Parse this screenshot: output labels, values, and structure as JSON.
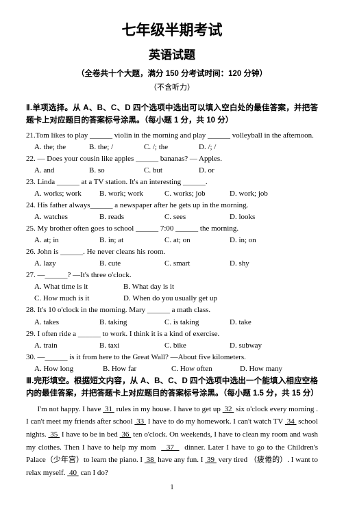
{
  "header": {
    "main_title": "七年级半期考试",
    "sub_title": "英语试题",
    "info": "（全卷共十个大题，满分 150 分考试时间：120 分钟）",
    "note": "（不含听力）"
  },
  "sectionII": {
    "heading": "Ⅱ.单项选择。从 A、B、C、D 四个选项中选出可以填入空白处的最佳答案，并把答题卡上对应题目的答案标号涂黑。（每小题 1 分，共 10 分）",
    "questions": [
      {
        "stem": "21.Tom likes to play ______ violin in the morning and play ______ volleyball in the afternoon.",
        "opts": [
          "A. the; the",
          "B. the; /",
          "C. /; the",
          "D. /; /"
        ],
        "widths": [
          80,
          80,
          80,
          80
        ]
      },
      {
        "stem": "22. — Does your cousin like apples ______ bananas?        — Apples.",
        "opts": [
          "A. and",
          "B. so",
          "C. but",
          "D. or"
        ],
        "widths": [
          80,
          80,
          80,
          80
        ]
      },
      {
        "stem": "23. Linda ______ at a TV station. It's an interesting ______.",
        "opts": [
          "A. works; work",
          "B. work; work",
          "C. works; job",
          "D. work; job"
        ],
        "widths": [
          95,
          95,
          95,
          95
        ]
      },
      {
        "stem": "24. His father always______ a newspaper after he gets up in the morning.",
        "opts": [
          "A. watches",
          "B. reads",
          "C. sees",
          "D. looks"
        ],
        "widths": [
          95,
          95,
          95,
          95
        ]
      },
      {
        "stem": "25. My brother often goes to school ______ 7:00 ______ the morning.",
        "opts": [
          "A. at; in",
          "B. in; at",
          "C. at; on",
          "D. in; on"
        ],
        "widths": [
          95,
          95,
          95,
          95
        ]
      },
      {
        "stem": "26. John is ______. He never cleans his room.",
        "opts": [
          "A. lazy",
          "B. cute",
          "C. smart",
          "D. shy"
        ],
        "widths": [
          95,
          95,
          95,
          95
        ]
      },
      {
        "stem": "27. —______?    —It's three o'clock.",
        "opts": [
          "A. What time is it",
          "B. What day is it",
          "C. How much is it",
          "D. When do you usually get up"
        ],
        "widths": [
          130,
          130,
          130,
          200
        ],
        "twoLine": true
      },
      {
        "stem": "28. It's 10 o'clock in the morning. Mary ______ a math class.",
        "opts": [
          "A. takes",
          "B. taking",
          "C. is taking",
          "D. take"
        ],
        "widths": [
          95,
          95,
          95,
          95
        ]
      },
      {
        "stem": "29. I often ride a ______ to work. I think it is a kind of exercise.",
        "opts": [
          "A. train",
          "B. taxi",
          "C. bike",
          "D. subway"
        ],
        "widths": [
          95,
          95,
          95,
          95
        ]
      },
      {
        "stem": "30. —______ is it from here to the Great Wall? —About five kilometers.",
        "opts": [
          "A. How long",
          "B. How far",
          "C. How often",
          "D. How many"
        ],
        "widths": [
          100,
          100,
          100,
          100
        ]
      }
    ]
  },
  "sectionIII": {
    "heading": "Ⅲ.完形填空。根据短文内容，从 A、B、C、D 四个选项中选出一个能填入相应空格内的最佳答案，并把答题卡上对应题目的答案标号涂黑。（每小题 1.5 分，共 15 分）",
    "passage_html": "I'm not happy.  I have <u>&nbsp;31&nbsp;</u> rules in my house. I have to get up <u>&nbsp;32&nbsp;</u> six o'clock every morning . I can't meet my friends after school <u>&nbsp;33&nbsp;</u> I have to do my homework. I can't watch TV <u>&nbsp;34&nbsp;</u> school nights. <u>&nbsp;35&nbsp;</u> I have to be in bed <u>&nbsp;36&nbsp;</u> ten o'clock. On weekends, I have to clean my room and wash my clothes. Then I have to help my mom &nbsp;<u>&nbsp;&nbsp;37&nbsp;&nbsp;</u>&nbsp; dinner. Later I have to go to the Children's Palace（少年宫）to learn the piano. I <u>&nbsp;38&nbsp;</u> have any fun. I <u>&nbsp;39&nbsp;</u> very tired （疲倦的）. I want to relax myself. <u>&nbsp;40&nbsp;</u> can I do?"
  },
  "page_number": "1"
}
